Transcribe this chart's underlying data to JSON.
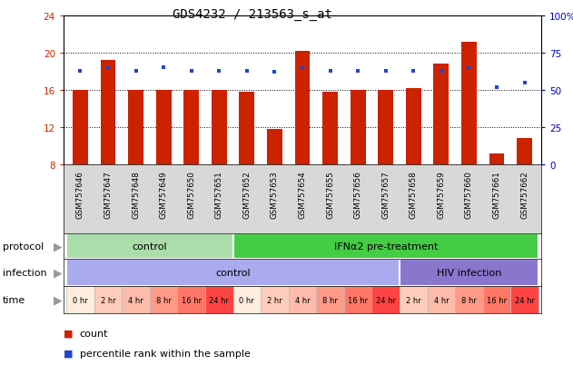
{
  "title": "GDS4232 / 213563_s_at",
  "samples": [
    "GSM757646",
    "GSM757647",
    "GSM757648",
    "GSM757649",
    "GSM757650",
    "GSM757651",
    "GSM757652",
    "GSM757653",
    "GSM757654",
    "GSM757655",
    "GSM757656",
    "GSM757657",
    "GSM757658",
    "GSM757659",
    "GSM757660",
    "GSM757661",
    "GSM757662"
  ],
  "counts": [
    16.0,
    19.2,
    16.0,
    16.0,
    16.0,
    16.0,
    15.8,
    11.8,
    20.2,
    15.8,
    16.0,
    16.0,
    16.2,
    18.8,
    21.2,
    9.2,
    10.8
  ],
  "percentile_ranks": [
    63,
    65,
    63,
    65,
    63,
    63,
    63,
    62,
    65,
    63,
    63,
    63,
    63,
    63,
    65,
    52,
    55
  ],
  "ylim_left": [
    8,
    24
  ],
  "ylim_right": [
    0,
    100
  ],
  "yticks_left": [
    8,
    12,
    16,
    20,
    24
  ],
  "yticks_right": [
    0,
    25,
    50,
    75,
    100
  ],
  "bar_color": "#cc2200",
  "dot_color": "#2244cc",
  "bar_width": 0.55,
  "protocol_groups": [
    {
      "label": "control",
      "start": 0,
      "end": 5,
      "color": "#aaddaa"
    },
    {
      "label": "IFNα2 pre-treatment",
      "start": 6,
      "end": 16,
      "color": "#44cc44"
    }
  ],
  "infection_groups": [
    {
      "label": "control",
      "start": 0,
      "end": 11,
      "color": "#aaaaee"
    },
    {
      "label": "HIV infection",
      "start": 12,
      "end": 16,
      "color": "#8877cc"
    }
  ],
  "time_labels": [
    "0 hr",
    "2 hr",
    "4 hr",
    "8 hr",
    "16 hr",
    "24 hr",
    "0 hr",
    "2 hr",
    "4 hr",
    "8 hr",
    "16 hr",
    "24 hr",
    "2 hr",
    "4 hr",
    "8 hr",
    "16 hr",
    "24 hr"
  ],
  "time_colors": [
    "#ffeedd",
    "#ffccbb",
    "#ffbbaa",
    "#ff9988",
    "#ff7766",
    "#ff4444",
    "#ffeedd",
    "#ffccbb",
    "#ffbbaa",
    "#ff9988",
    "#ff7766",
    "#ff4444",
    "#ffccbb",
    "#ffbbaa",
    "#ff9988",
    "#ff7766",
    "#ff4444"
  ],
  "legend_count_label": "count",
  "legend_pct_label": "percentile rank within the sample",
  "background_color": "#ffffff",
  "left_tick_color": "#cc2200",
  "right_tick_color": "#0000cc",
  "arrow_color": "#999999"
}
